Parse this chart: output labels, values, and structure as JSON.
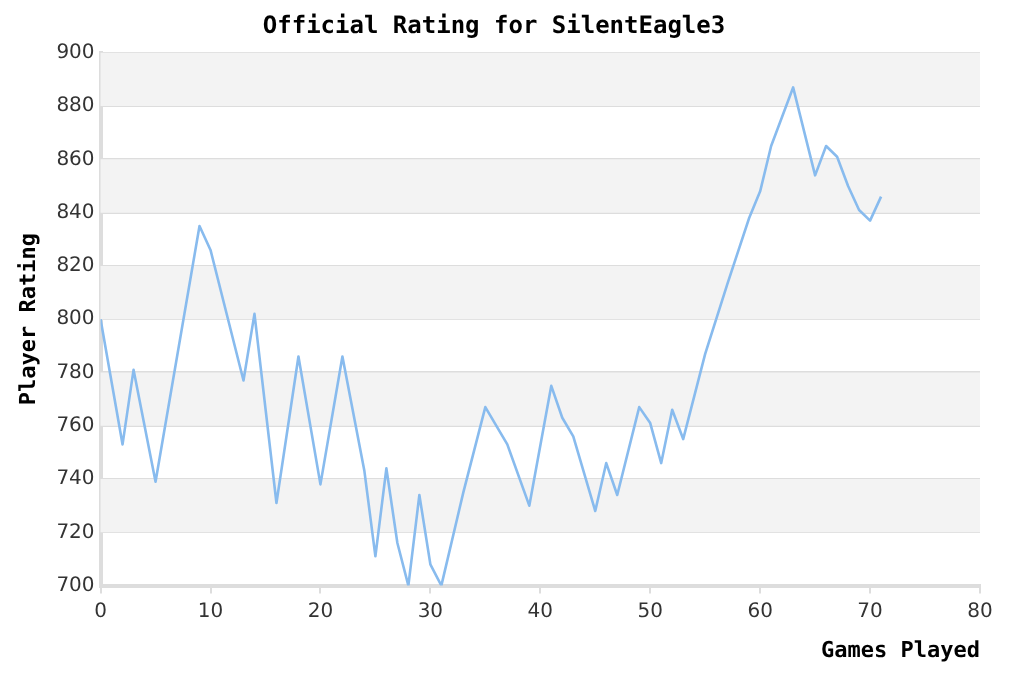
{
  "chart_data": {
    "type": "line",
    "title": "Official Rating for SilentEagle3",
    "xlabel": "Games Played",
    "ylabel": "Player Rating",
    "x": [
      0,
      2,
      3,
      5,
      9,
      10,
      13,
      14,
      16,
      18,
      20,
      22,
      24,
      25,
      26,
      27,
      28,
      29,
      30,
      31,
      33,
      35,
      37,
      39,
      41,
      42,
      43,
      45,
      46,
      47,
      49,
      50,
      51,
      52,
      53,
      55,
      57,
      59,
      60,
      61,
      62,
      63,
      65,
      66,
      67,
      68,
      69,
      70,
      71
    ],
    "series": [
      {
        "color": "#88bbee",
        "values": [
          800,
          753,
          781,
          739,
          835,
          826,
          777,
          802,
          731,
          786,
          738,
          786,
          743,
          711,
          744,
          716,
          700,
          734,
          708,
          700,
          735,
          767,
          753,
          730,
          775,
          763,
          756,
          728,
          746,
          734,
          767,
          761,
          746,
          766,
          755,
          787,
          813,
          838,
          848,
          865,
          876,
          887,
          854,
          865,
          861,
          850,
          841,
          837,
          846
        ]
      }
    ],
    "xlim": [
      0,
      80
    ],
    "xticks": [
      0,
      10,
      20,
      30,
      40,
      50,
      60,
      70,
      80
    ],
    "ylim": [
      700,
      900
    ],
    "yticks": [
      700,
      720,
      740,
      760,
      780,
      800,
      820,
      840,
      860,
      880,
      900
    ],
    "grid": "y",
    "legend": false,
    "marker": "none",
    "line_style": "solid"
  }
}
